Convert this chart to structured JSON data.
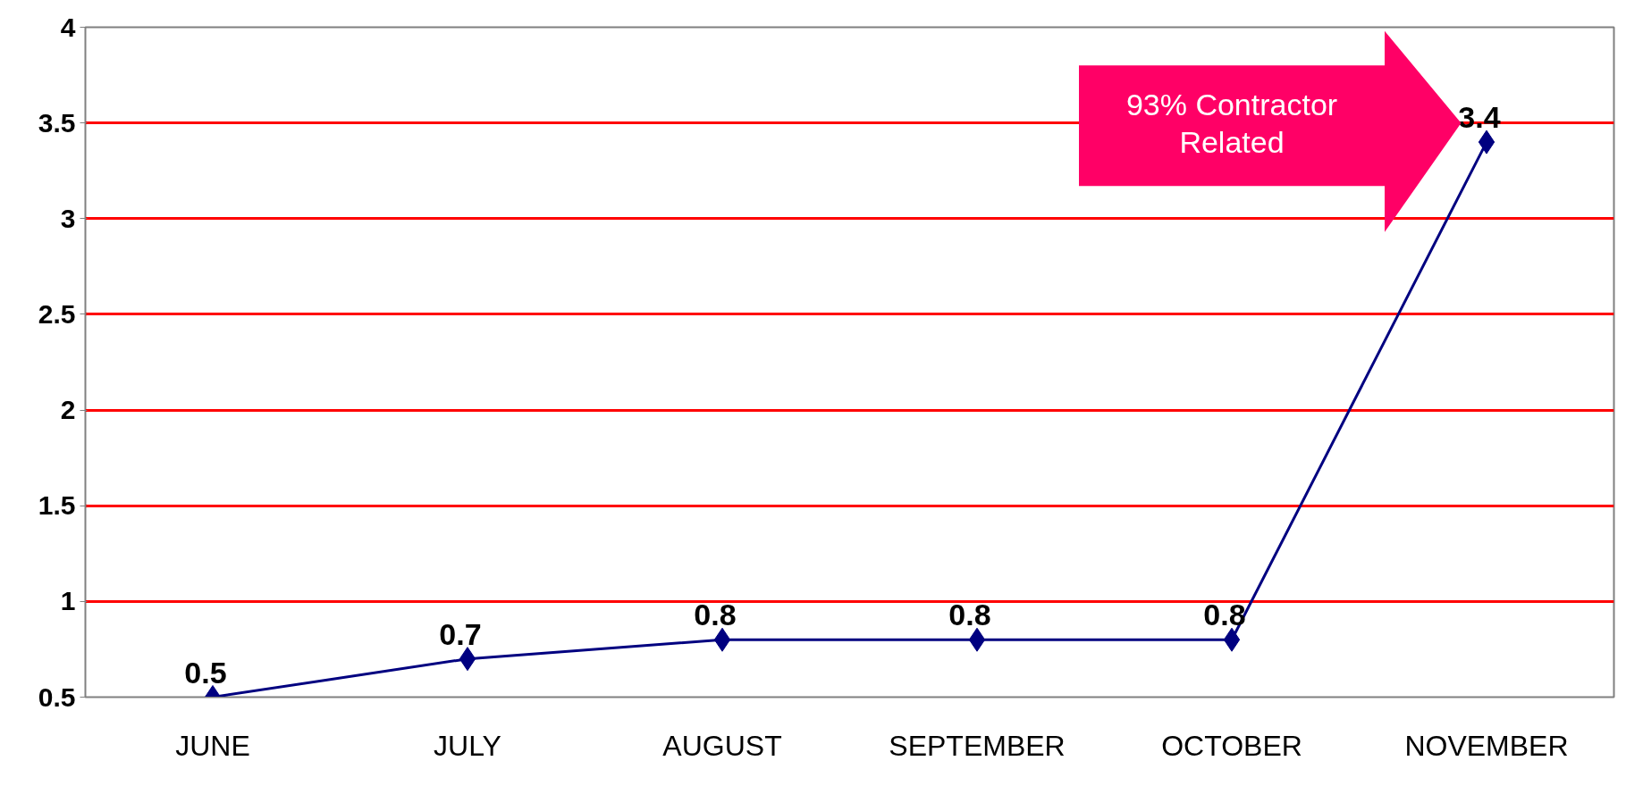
{
  "chart_data": {
    "type": "line",
    "categories": [
      "JUNE",
      "JULY",
      "AUGUST",
      "SEPTEMBER",
      "OCTOBER",
      "NOVEMBER"
    ],
    "series": [
      {
        "color": "#000080",
        "values": [
          0.5,
          0.7,
          0.8,
          0.8,
          0.8,
          3.4
        ]
      }
    ],
    "ylim": [
      0.5,
      4
    ],
    "yticks": [
      0.5,
      1,
      1.5,
      2,
      2.5,
      3,
      3.5,
      4
    ],
    "grid": "y",
    "marker": "diamond",
    "line_style": "solid",
    "data_labels": true,
    "annotations": [
      "93% Contractor\nRelated"
    ]
  }
}
